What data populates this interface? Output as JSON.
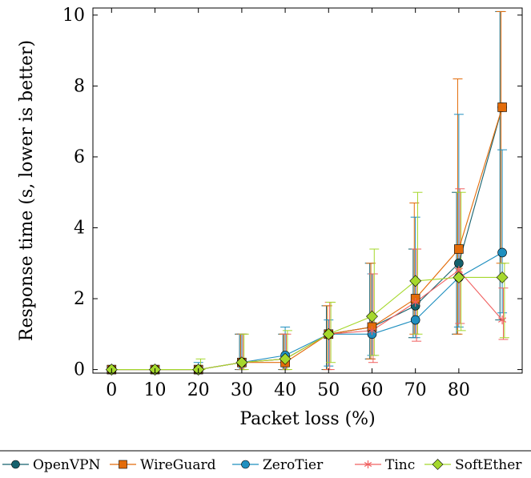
{
  "chart_data": {
    "type": "line",
    "xlabel": "Packet loss (%)",
    "ylabel": "Response time (s, lower is better)",
    "x": [
      0,
      10,
      20,
      30,
      40,
      50,
      60,
      70,
      80,
      90
    ],
    "x_tick_labels": [
      "0",
      "10",
      "20",
      "30",
      "40",
      "50",
      "60",
      "70",
      "80"
    ],
    "y_ticks": [
      0,
      2,
      4,
      6,
      8,
      10
    ],
    "xlim": [
      -4.3,
      94.6
    ],
    "ylim": [
      -0.1,
      10.2
    ],
    "grid": false,
    "legend_position": "bottom",
    "series": [
      {
        "name": "OpenVPN",
        "color": "#15616d",
        "marker": "circle",
        "values": [
          0,
          0,
          0,
          0.2,
          0.3,
          1.0,
          1.2,
          1.8,
          3.0,
          7.4
        ],
        "err_low": [
          0,
          0,
          0,
          0,
          0,
          0,
          0.3,
          0.9,
          1.0,
          1.4
        ],
        "err_high": [
          0,
          0,
          0,
          1.0,
          1.0,
          1.8,
          3.0,
          3.4,
          5.0,
          10.1
        ]
      },
      {
        "name": "WireGuard",
        "color": "#e36c0a",
        "marker": "square",
        "values": [
          0,
          0,
          0,
          0.2,
          0.2,
          1.0,
          1.2,
          2.0,
          3.4,
          7.4
        ],
        "err_low": [
          0,
          0,
          0,
          0,
          0,
          0,
          0.3,
          1.0,
          1.0,
          3.0
        ],
        "err_high": [
          0,
          0,
          0,
          1.0,
          1.0,
          1.8,
          3.0,
          4.7,
          8.2,
          10.1
        ]
      },
      {
        "name": "ZeroTier",
        "color": "#1f8fbf",
        "marker": "circle",
        "values": [
          0,
          0,
          0,
          0.2,
          0.4,
          1.0,
          1.0,
          1.4,
          2.6,
          3.3
        ],
        "err_low": [
          0,
          0,
          0,
          0,
          0,
          0.1,
          0.4,
          0.9,
          1.2,
          1.6
        ],
        "err_high": [
          0,
          0,
          0.2,
          1.0,
          1.2,
          1.4,
          2.7,
          4.3,
          7.2,
          6.2
        ]
      },
      {
        "name": "Tinc",
        "color": "#f06060",
        "marker": "asterisk",
        "values": [
          0,
          0,
          0,
          0.2,
          0.3,
          1.0,
          1.1,
          1.9,
          2.8,
          1.4
        ],
        "err_low": [
          0,
          0,
          0,
          0,
          0,
          0,
          0.2,
          0.8,
          1.3,
          0.85
        ],
        "err_high": [
          0,
          0,
          0,
          1.0,
          1.0,
          1.9,
          2.7,
          3.4,
          5.1,
          2.3
        ]
      },
      {
        "name": "SoftEther",
        "color": "#a5d82c",
        "marker": "diamond",
        "values": [
          0,
          0,
          0,
          0.2,
          0.3,
          1.0,
          1.5,
          2.5,
          2.6,
          2.6
        ],
        "err_low": [
          0,
          0,
          0,
          0,
          0,
          0.2,
          0.4,
          1.0,
          1.1,
          0.9
        ],
        "err_high": [
          0,
          0,
          0.3,
          1.0,
          1.1,
          1.9,
          3.4,
          5.0,
          5.0,
          3.0
        ]
      }
    ]
  }
}
